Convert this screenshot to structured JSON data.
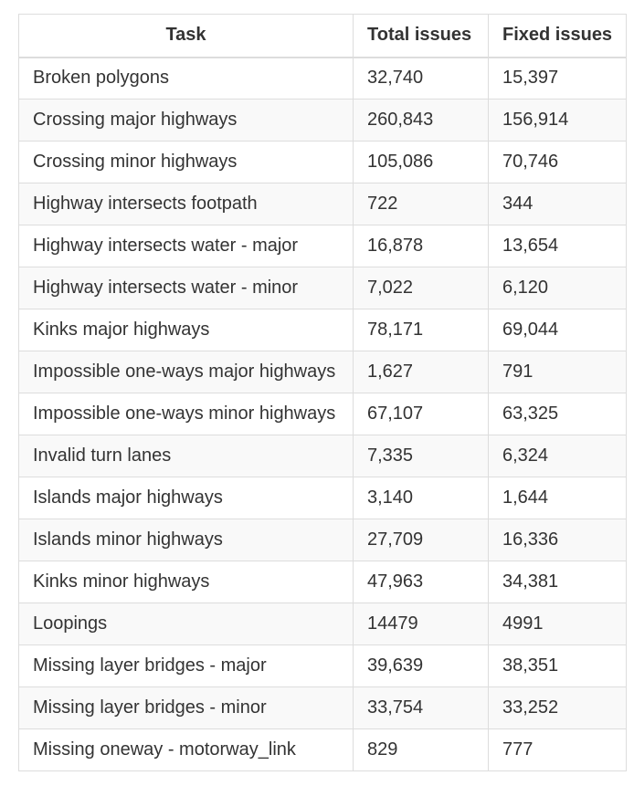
{
  "table": {
    "headers": {
      "task": "Task",
      "total": "Total issues",
      "fixed": "Fixed issues"
    },
    "rows": [
      {
        "task": "Broken polygons",
        "total": "32,740",
        "fixed": "15,397"
      },
      {
        "task": "Crossing major highways",
        "total": "260,843",
        "fixed": "156,914"
      },
      {
        "task": "Crossing minor highways",
        "total": "105,086",
        "fixed": "70,746"
      },
      {
        "task": "Highway intersects footpath",
        "total": "722",
        "fixed": "344"
      },
      {
        "task": "Highway intersects water - major",
        "total": "16,878",
        "fixed": "13,654"
      },
      {
        "task": "Highway intersects water - minor",
        "total": "7,022",
        "fixed": "6,120"
      },
      {
        "task": "Kinks major highways",
        "total": "78,171",
        "fixed": "69,044"
      },
      {
        "task": "Impossible one-ways major highways",
        "total": "1,627",
        "fixed": "791"
      },
      {
        "task": "Impossible one-ways minor highways",
        "total": "67,107",
        "fixed": "63,325"
      },
      {
        "task": "Invalid turn lanes",
        "total": "7,335",
        "fixed": "6,324"
      },
      {
        "task": "Islands major highways",
        "total": "3,140",
        "fixed": "1,644"
      },
      {
        "task": "Islands minor highways",
        "total": "27,709",
        "fixed": "16,336"
      },
      {
        "task": "Kinks minor highways",
        "total": "47,963",
        "fixed": "34,381"
      },
      {
        "task": "Loopings",
        "total": "14479",
        "fixed": "4991"
      },
      {
        "task": "Missing layer bridges - major",
        "total": "39,639",
        "fixed": "38,351"
      },
      {
        "task": "Missing layer bridges - minor",
        "total": "33,754",
        "fixed": "33,252"
      },
      {
        "task": "Missing oneway - motorway_link",
        "total": "829",
        "fixed": "777"
      }
    ]
  }
}
